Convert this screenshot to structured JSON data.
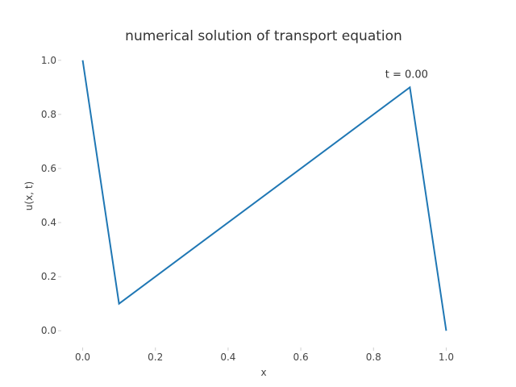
{
  "chart_data": {
    "type": "line",
    "title": "numerical solution of transport equation",
    "xlabel": "x",
    "ylabel": "u(x, t)",
    "xlim": [
      -0.05,
      1.05
    ],
    "ylim": [
      -0.05,
      1.05
    ],
    "xticks": [
      0.0,
      0.2,
      0.4,
      0.6,
      0.8,
      1.0
    ],
    "xtick_labels": [
      "0.0",
      "0.2",
      "0.4",
      "0.6",
      "0.8",
      "1.0"
    ],
    "yticks": [
      0.0,
      0.2,
      0.4,
      0.6,
      0.8,
      1.0
    ],
    "ytick_labels": [
      "0.0",
      "0.2",
      "0.4",
      "0.6",
      "0.8",
      "1.0"
    ],
    "grid": false,
    "series": [
      {
        "color": "#1f77b4",
        "x": [
          0.0,
          0.1,
          0.9,
          1.0
        ],
        "y": [
          1.0,
          0.1,
          0.9,
          0.0
        ]
      }
    ],
    "annotation": {
      "text": "t = 0.00",
      "x": 0.9,
      "y": 0.95
    }
  }
}
